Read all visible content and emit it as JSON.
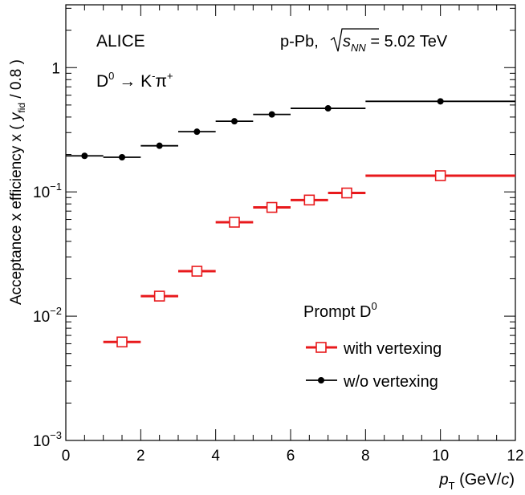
{
  "chart_data": {
    "type": "scatter",
    "title": "",
    "xlabel": {
      "main": "p",
      "sub": "T",
      "unit_pre": " (GeV/",
      "unit_c": "c",
      "unit_post": ")"
    },
    "ylabel": {
      "pre": "Acceptance x efficiency x ( ",
      "var": "y",
      "sub": "fid",
      "post": " / 0.8 )"
    },
    "x_range": [
      0,
      12
    ],
    "y_range": [
      0.001,
      3.2
    ],
    "y_scale": "log",
    "x_ticks": [
      "0",
      "2",
      "4",
      "6",
      "8",
      "10",
      "12"
    ],
    "y_ticks": [
      {
        "value": 0.001,
        "base": "10",
        "exp": "−3"
      },
      {
        "value": 0.01,
        "base": "10",
        "exp": "−2"
      },
      {
        "value": 0.1,
        "base": "10",
        "exp": "−1"
      },
      {
        "value": 1,
        "base": "1",
        "exp": ""
      }
    ],
    "annotations": {
      "experiment": "ALICE",
      "decay_D": "D",
      "decay_sup": "0",
      "decay_arrow": " → K",
      "decay_Ksup": "-",
      "decay_pi": "π",
      "decay_pisup": "+",
      "system": "p-Pb, ",
      "energy_var": "s",
      "energy_sub": "NN",
      "energy_val": " = 5.02 TeV"
    },
    "legend": {
      "placement": "bottom-right",
      "header": "Prompt D",
      "header_sup": "0"
    },
    "series": [
      {
        "name": "with vertexing",
        "color": "#e8191c",
        "marker": "open-square",
        "points": [
          {
            "x": 1.5,
            "xlow": 1,
            "xhigh": 2,
            "y": 0.0062
          },
          {
            "x": 2.5,
            "xlow": 2,
            "xhigh": 3,
            "y": 0.0145
          },
          {
            "x": 3.5,
            "xlow": 3,
            "xhigh": 4,
            "y": 0.023
          },
          {
            "x": 4.5,
            "xlow": 4,
            "xhigh": 5,
            "y": 0.057
          },
          {
            "x": 5.5,
            "xlow": 5,
            "xhigh": 6,
            "y": 0.075
          },
          {
            "x": 6.5,
            "xlow": 6,
            "xhigh": 7,
            "y": 0.086
          },
          {
            "x": 7.5,
            "xlow": 7,
            "xhigh": 8,
            "y": 0.098
          },
          {
            "x": 10,
            "xlow": 8,
            "xhigh": 12,
            "y": 0.135
          }
        ]
      },
      {
        "name": "w/o vertexing",
        "color": "#000000",
        "marker": "filled-circle",
        "points": [
          {
            "x": 0.5,
            "xlow": 0,
            "xhigh": 1,
            "y": 0.195
          },
          {
            "x": 1.5,
            "xlow": 1,
            "xhigh": 2,
            "y": 0.19
          },
          {
            "x": 2.5,
            "xlow": 2,
            "xhigh": 3,
            "y": 0.235
          },
          {
            "x": 3.5,
            "xlow": 3,
            "xhigh": 4,
            "y": 0.305
          },
          {
            "x": 4.5,
            "xlow": 4,
            "xhigh": 5,
            "y": 0.37
          },
          {
            "x": 5.5,
            "xlow": 5,
            "xhigh": 6,
            "y": 0.42
          },
          {
            "x": 7,
            "xlow": 6,
            "xhigh": 8,
            "y": 0.47
          },
          {
            "x": 10,
            "xlow": 8,
            "xhigh": 12,
            "y": 0.535
          }
        ]
      }
    ]
  }
}
